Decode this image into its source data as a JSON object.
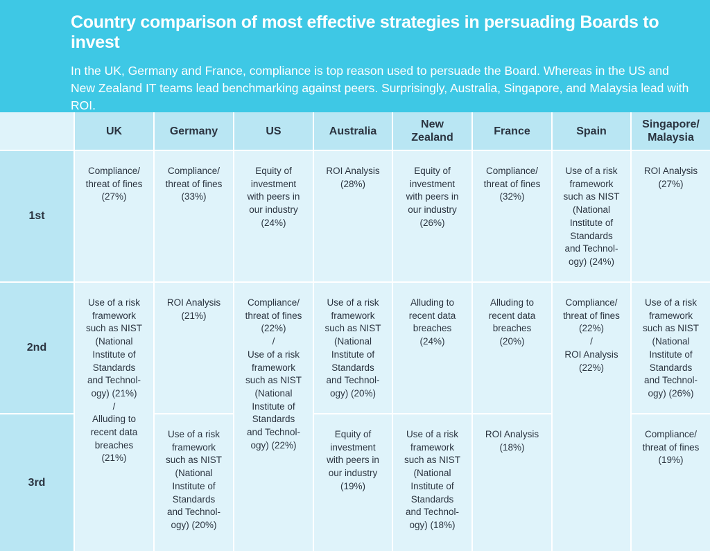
{
  "header": {
    "title": "Country comparison of most effective strategies in persuading Boards to invest",
    "subtitle": "In the UK, Germany and France, compliance is top reason used to persuade the Board.  Whereas in the US and New Zealand IT teams lead benchmarking against peers. Surprisingly,  Australia, Singapore, and Malaysia lead with ROI."
  },
  "colors": {
    "header_bg": "#3ec8e5",
    "header_cell_bg": "#b9e6f3",
    "body_cell_bg": "#dff3fa",
    "text": "#2b3440"
  },
  "chart_data": {
    "type": "table",
    "columns": [
      "UK",
      "Germany",
      "US",
      "Australia",
      "New\nZealand",
      "France",
      "Spain",
      "Singapore/\nMalaysia"
    ],
    "rows": [
      "1st",
      "2nd",
      "3rd"
    ],
    "cells": {
      "uk_1": "Compliance/\nthreat of fines\n(27%)",
      "uk_23": "Use of a risk\nframework\nsuch as NIST\n(National\nInstitute of\nStandards\nand Technol-\nogy) (21%)\n/\nAlluding to\nrecent data\nbreaches\n(21%)",
      "de_1": "Compliance/\nthreat of fines\n(33%)",
      "de_2": "ROI Analysis\n(21%)",
      "de_3": "Use of a risk\nframework\nsuch as NIST\n(National\nInstitute of\nStandards\nand Technol-\nogy) (20%)",
      "us_1": "Equity of\ninvestment\nwith peers in\nour industry\n(24%)",
      "us_23": "Compliance/\nthreat of fines\n(22%)\n/\nUse of a risk\nframework\nsuch as NIST\n(National\nInstitute of\nStandards\nand Technol-\nogy) (22%)",
      "au_1": "ROI Analysis\n(28%)",
      "au_2": "Use of a risk\nframework\nsuch as NIST\n(National\nInstitute of\nStandards\nand Technol-\nogy) (20%)",
      "au_3": "Equity of\ninvestment\nwith peers in\nour industry\n(19%)",
      "nz_1": "Equity of\ninvestment\nwith peers in\nour industry\n(26%)",
      "nz_2": "Alluding to\nrecent data\nbreaches\n(24%)",
      "nz_3": "Use of a risk\nframework\nsuch as NIST\n(National\nInstitute of\nStandards\nand Technol-\nogy) (18%)",
      "fr_1": "Compliance/\nthreat of fines\n(32%)",
      "fr_2": "Alluding to\nrecent data\nbreaches\n(20%)",
      "fr_3": "ROI Analysis\n(18%)",
      "es_1": "Use of a risk\nframework\nsuch as NIST\n(National\nInstitute of\nStandards\nand Technol-\nogy) (24%)",
      "es_23": "Compliance/\nthreat of fines\n(22%)\n/\nROI Analysis\n(22%)",
      "sg_1": "ROI Analysis\n(27%)",
      "sg_2": "Use of a risk\nframework\nsuch as NIST\n(National\nInstitute of\nStandards\nand Technol-\nogy) (26%)",
      "sg_3": "Compliance/\nthreat of fines\n(19%)"
    }
  }
}
